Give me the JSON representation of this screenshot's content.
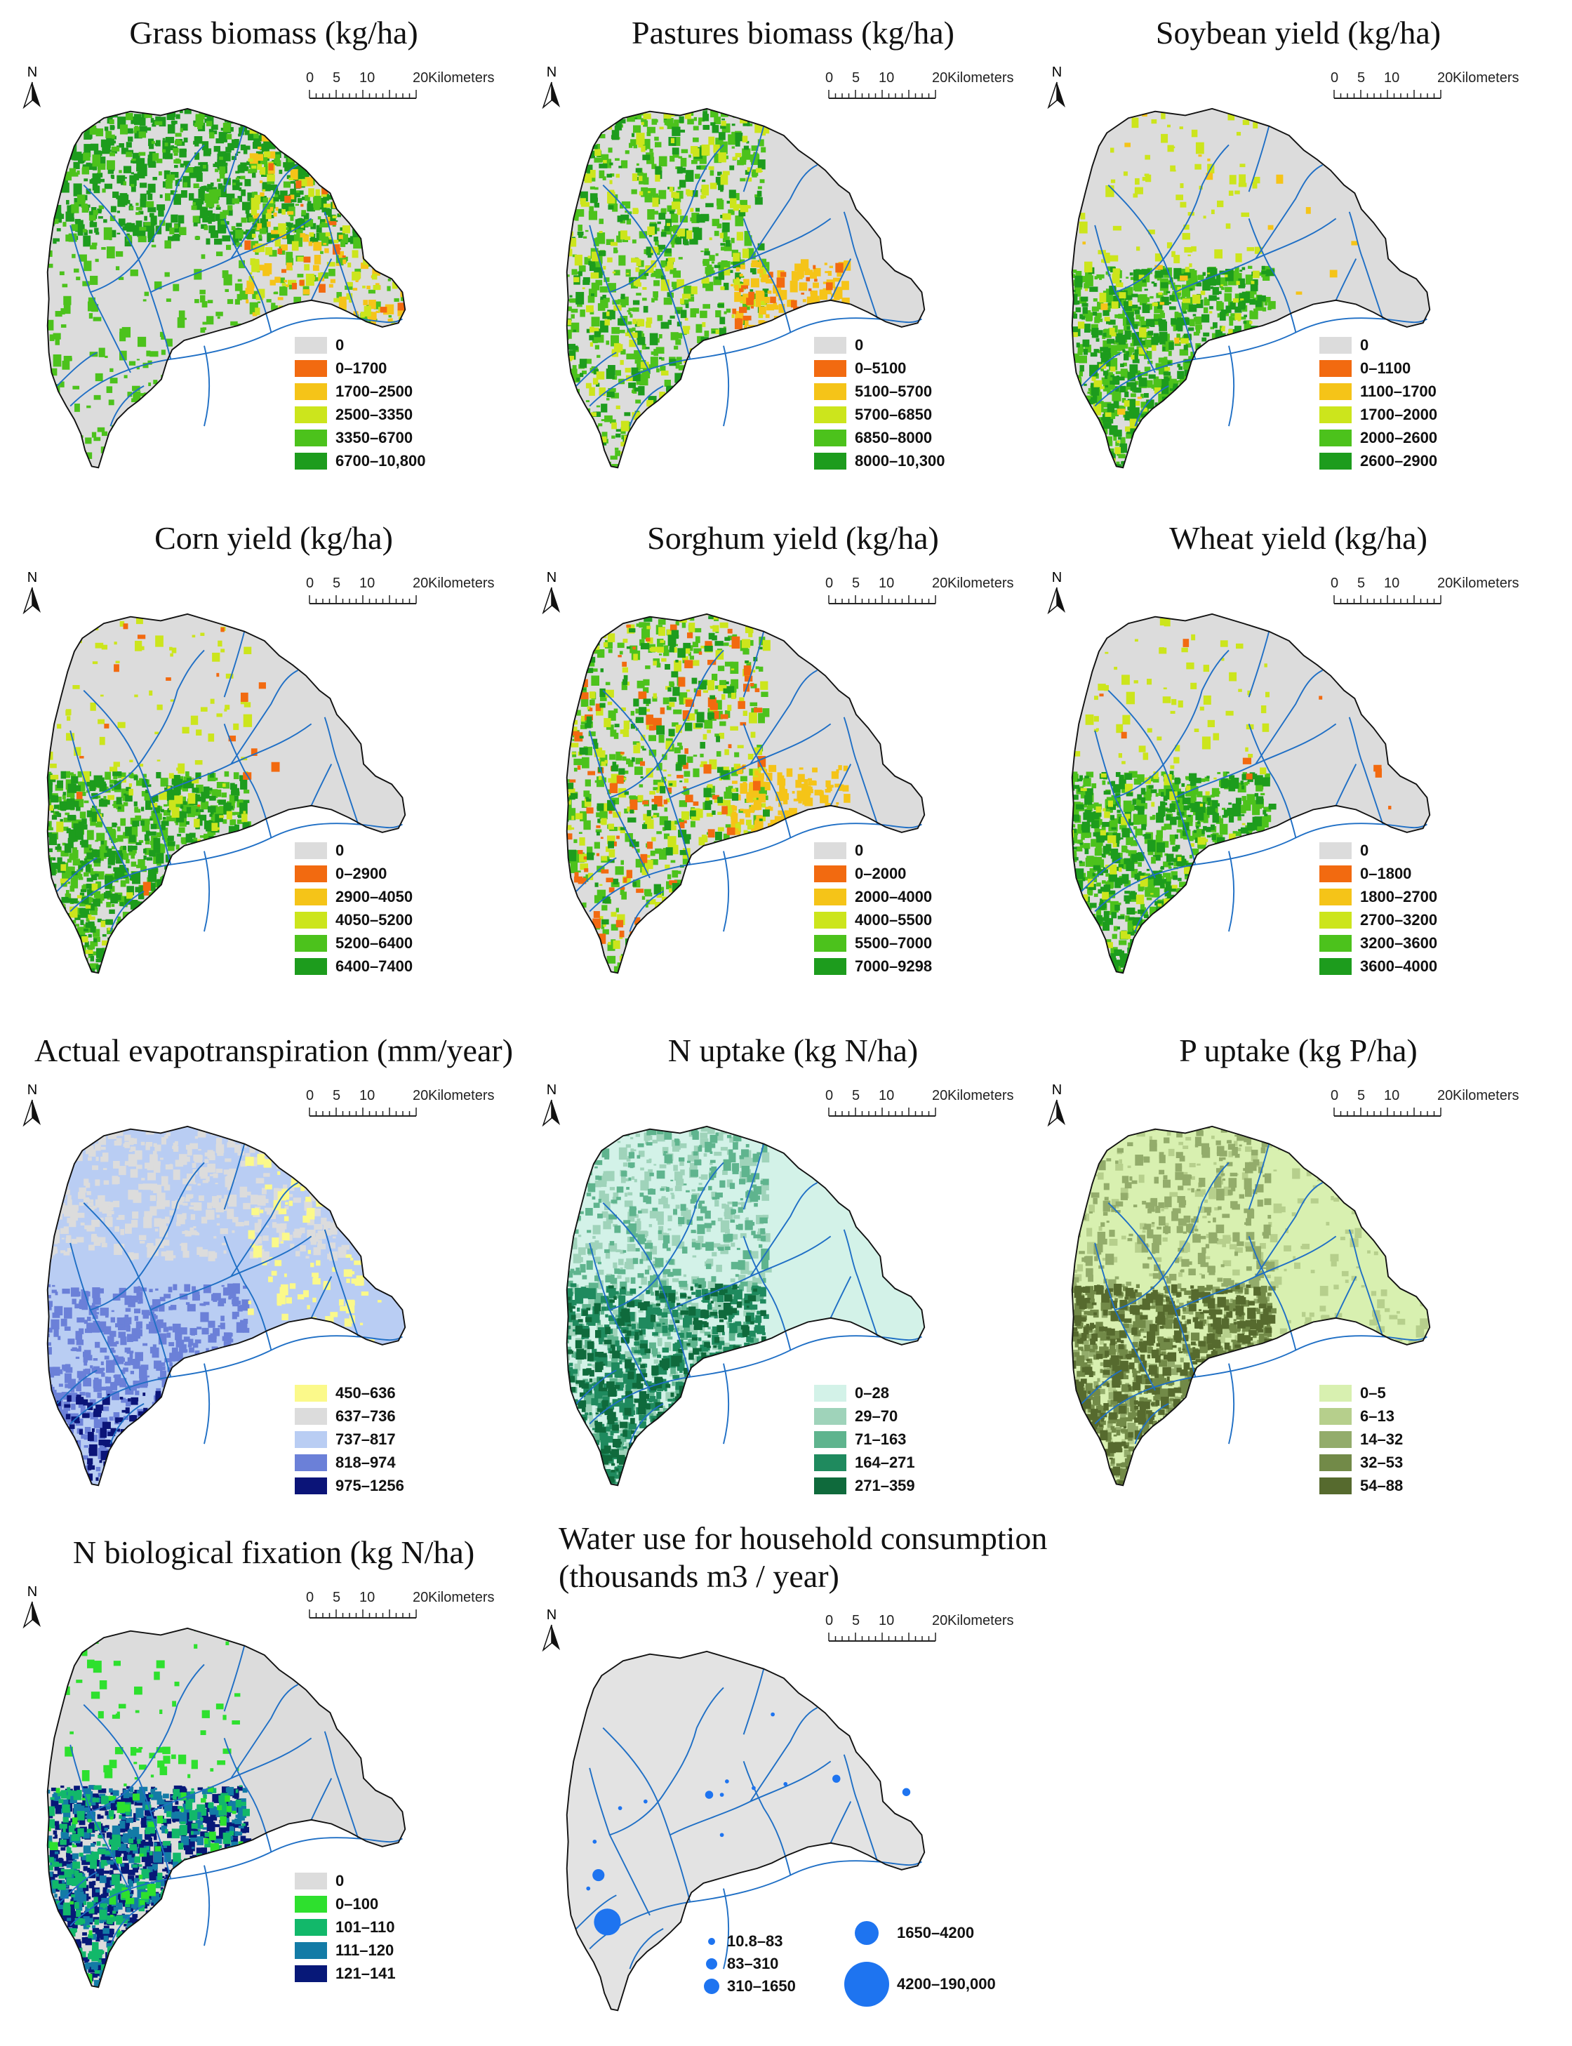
{
  "scale_bar": {
    "ticks": [
      "0",
      "5",
      "10",
      "20"
    ],
    "unit": "Kilometers"
  },
  "north_label": "N",
  "colors": {
    "background": "#ffffff",
    "map_fill": "#e3e3e3",
    "outline": "#111111",
    "river": "#1f6fc5",
    "bubble": "#1e74f0"
  },
  "panels": [
    {
      "id": "grass-biomass",
      "title": "Grass biomass (kg/ha)",
      "legend": [
        {
          "label": "0",
          "color": "#dcdcdc"
        },
        {
          "label": "0–1700",
          "color": "#f26a10"
        },
        {
          "label": "1700–2500",
          "color": "#f5c418"
        },
        {
          "label": "2500–3350",
          "color": "#cce51c"
        },
        {
          "label": "3350–6700",
          "color": "#4cc21c"
        },
        {
          "label": "6700–10,800",
          "color": "#1d9c1d"
        }
      ]
    },
    {
      "id": "pastures-biomass",
      "title": "Pastures biomass (kg/ha)",
      "legend": [
        {
          "label": "0",
          "color": "#dcdcdc"
        },
        {
          "label": "0–5100",
          "color": "#f26a10"
        },
        {
          "label": "5100–5700",
          "color": "#f5c418"
        },
        {
          "label": "5700–6850",
          "color": "#cce51c"
        },
        {
          "label": "6850–8000",
          "color": "#4cc21c"
        },
        {
          "label": "8000–10,300",
          "color": "#1d9c1d"
        }
      ]
    },
    {
      "id": "soybean-yield",
      "title": "Soybean yield (kg/ha)",
      "legend": [
        {
          "label": "0",
          "color": "#dcdcdc"
        },
        {
          "label": "0–1100",
          "color": "#f26a10"
        },
        {
          "label": "1100–1700",
          "color": "#f5c418"
        },
        {
          "label": "1700–2000",
          "color": "#cce51c"
        },
        {
          "label": "2000–2600",
          "color": "#4cc21c"
        },
        {
          "label": "2600–2900",
          "color": "#1d9c1d"
        }
      ]
    },
    {
      "id": "corn-yield",
      "title": "Corn yield (kg/ha)",
      "legend": [
        {
          "label": "0",
          "color": "#dcdcdc"
        },
        {
          "label": "0–2900",
          "color": "#f26a10"
        },
        {
          "label": "2900–4050",
          "color": "#f5c418"
        },
        {
          "label": "4050–5200",
          "color": "#cce51c"
        },
        {
          "label": "5200–6400",
          "color": "#4cc21c"
        },
        {
          "label": "6400–7400",
          "color": "#1d9c1d"
        }
      ]
    },
    {
      "id": "sorghum-yield",
      "title": "Sorghum yield (kg/ha)",
      "legend": [
        {
          "label": "0",
          "color": "#dcdcdc"
        },
        {
          "label": "0–2000",
          "color": "#f26a10"
        },
        {
          "label": "2000–4000",
          "color": "#f5c418"
        },
        {
          "label": "4000–5500",
          "color": "#cce51c"
        },
        {
          "label": "5500–7000",
          "color": "#4cc21c"
        },
        {
          "label": "7000–9298",
          "color": "#1d9c1d"
        }
      ]
    },
    {
      "id": "wheat-yield",
      "title": "Wheat yield (kg/ha)",
      "legend": [
        {
          "label": "0",
          "color": "#dcdcdc"
        },
        {
          "label": "0–1800",
          "color": "#f26a10"
        },
        {
          "label": "1800–2700",
          "color": "#f5c418"
        },
        {
          "label": "2700–3200",
          "color": "#cce51c"
        },
        {
          "label": "3200–3600",
          "color": "#4cc21c"
        },
        {
          "label": "3600–4000",
          "color": "#1d9c1d"
        }
      ]
    },
    {
      "id": "actual-evapotranspiration",
      "title": "Actual evapotranspiration (mm/year)",
      "legend": [
        {
          "label": "450–636",
          "color": "#fbf98a"
        },
        {
          "label": "637–736",
          "color": "#dcdcdc"
        },
        {
          "label": "737–817",
          "color": "#b9cdf3"
        },
        {
          "label": "818–974",
          "color": "#6b80d8"
        },
        {
          "label": "975–1256",
          "color": "#0b1478"
        }
      ]
    },
    {
      "id": "n-uptake",
      "title": "N uptake (kg N/ha)",
      "legend": [
        {
          "label": "0–28",
          "color": "#d3f2e8"
        },
        {
          "label": "29–70",
          "color": "#9fd3ba"
        },
        {
          "label": "71–163",
          "color": "#5fb48e"
        },
        {
          "label": "164–271",
          "color": "#1f8a5e"
        },
        {
          "label": "271–359",
          "color": "#0f6a3c"
        }
      ]
    },
    {
      "id": "p-uptake",
      "title": "P uptake (kg P/ha)",
      "legend": [
        {
          "label": "0–5",
          "color": "#d8f0b0"
        },
        {
          "label": "6–13",
          "color": "#b6cf8c"
        },
        {
          "label": "14–32",
          "color": "#93ac6b"
        },
        {
          "label": "32–53",
          "color": "#728a48"
        },
        {
          "label": "54–88",
          "color": "#566a2e"
        }
      ]
    },
    {
      "id": "n-biological-fixation",
      "title": "N biological fixation (kg N/ha)",
      "legend": [
        {
          "label": "0",
          "color": "#dcdcdc"
        },
        {
          "label": "0–100",
          "color": "#2ee02e"
        },
        {
          "label": "101–110",
          "color": "#12b86a"
        },
        {
          "label": "111–120",
          "color": "#137ba6"
        },
        {
          "label": "121–141",
          "color": "#071878"
        }
      ]
    },
    {
      "id": "water-use",
      "title": "Water use for household consumption\n(thousands m3 / year)",
      "title_line1": "Water use for household consumption",
      "title_line2": "(thousands m3 / year)",
      "bubble_legend": [
        {
          "label": "10.8–83",
          "size": 1
        },
        {
          "label": "83–310",
          "size": 2
        },
        {
          "label": "310–1650",
          "size": 3
        },
        {
          "label": "1650–4200",
          "size": 4
        },
        {
          "label": "4200–190,000",
          "size": 5
        }
      ]
    }
  ]
}
